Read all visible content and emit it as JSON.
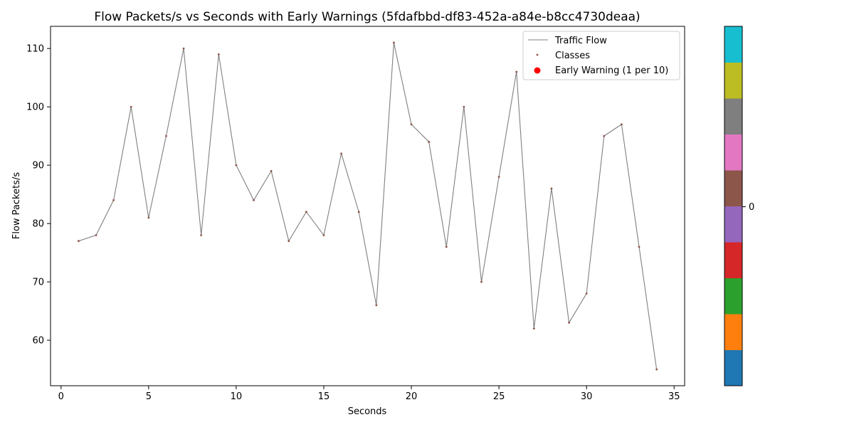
{
  "chart_data": {
    "type": "line",
    "title": "Flow Packets/s vs Seconds with Early Warnings (5fdafbbd-df83-452a-a84e-b8cc4730deaa)",
    "xlabel": "Seconds",
    "ylabel": "Flow Packets/s",
    "xlim": [
      -0.6,
      35.6
    ],
    "ylim": [
      52.2,
      113.8
    ],
    "xticks": [
      0,
      5,
      10,
      15,
      20,
      25,
      30,
      35
    ],
    "yticks": [
      60,
      70,
      80,
      90,
      100,
      110
    ],
    "grid": false,
    "legend_position": "top-right",
    "legend": [
      "Traffic Flow",
      "Classes",
      "Early Warning (1 per 10)"
    ],
    "series": [
      {
        "name": "Traffic Flow",
        "color": "#808080",
        "x": [
          1,
          2,
          3,
          4,
          5,
          6,
          7,
          8,
          9,
          10,
          11,
          12,
          13,
          14,
          15,
          16,
          17,
          18,
          19,
          20,
          21,
          22,
          23,
          24,
          25,
          26,
          27,
          28,
          29,
          30,
          31,
          32,
          33,
          34
        ],
        "y": [
          77,
          78,
          84,
          100,
          81,
          95,
          110,
          78,
          109,
          90,
          84,
          89,
          77,
          82,
          78,
          92,
          82,
          66,
          111,
          97,
          94,
          76,
          100,
          70,
          88,
          106,
          62,
          86,
          63,
          68,
          95,
          97,
          76,
          55
        ]
      }
    ],
    "classes_marker_color": "#8c564b",
    "early_warning_color": "#ff0000",
    "colorbar": {
      "tick_label": "0",
      "colors": [
        "#1f77b4",
        "#ff7f0e",
        "#2ca02c",
        "#d62728",
        "#9467bd",
        "#8c564b",
        "#e377c2",
        "#7f7f7f",
        "#bcbd22",
        "#17becf"
      ]
    }
  }
}
